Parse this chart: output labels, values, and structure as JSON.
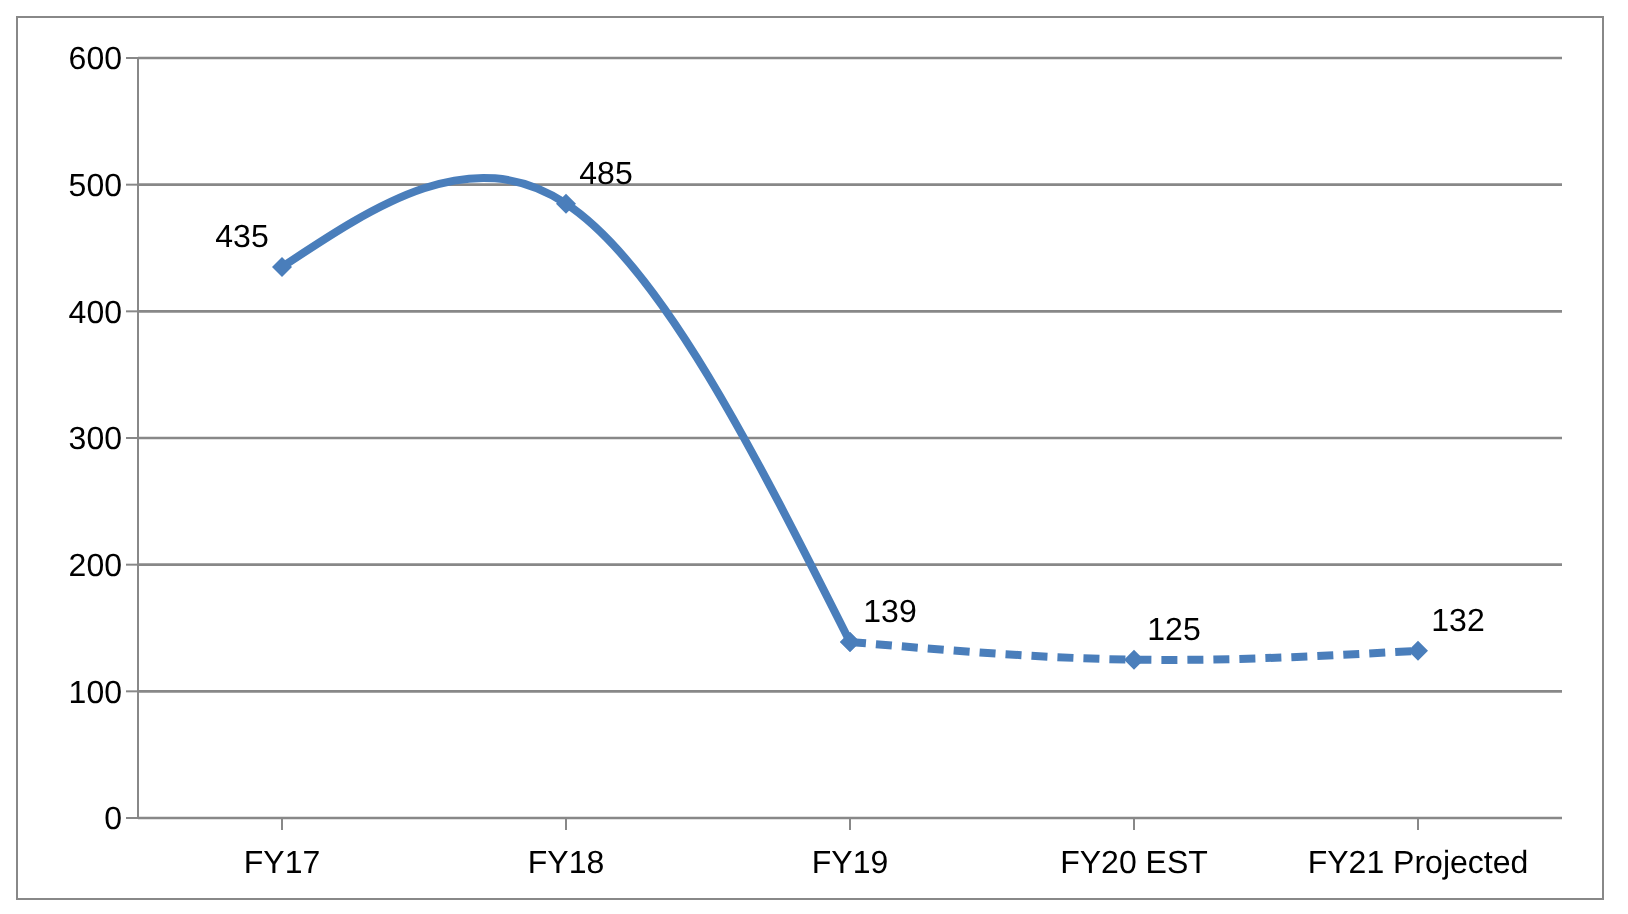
{
  "chart_data": {
    "type": "line",
    "categories": [
      "FY17",
      "FY18",
      "FY19",
      "FY20 EST",
      "FY21 Projected"
    ],
    "series": [
      {
        "color": "#4a7ebb",
        "line_style": "solid",
        "values": [
          435,
          485,
          139,
          null,
          null
        ],
        "value_labels": [
          "435",
          "485",
          "139",
          null,
          null
        ]
      },
      {
        "color": "#4a7ebb",
        "line_style": "dashed",
        "values": [
          null,
          null,
          139,
          125,
          132
        ],
        "value_labels": [
          null,
          null,
          null,
          "125",
          "132"
        ]
      }
    ],
    "ylim": [
      0,
      600
    ],
    "yticks": [
      0,
      100,
      200,
      300,
      400,
      500,
      600
    ],
    "grid": "y",
    "marker": "diamond",
    "legend": false
  }
}
